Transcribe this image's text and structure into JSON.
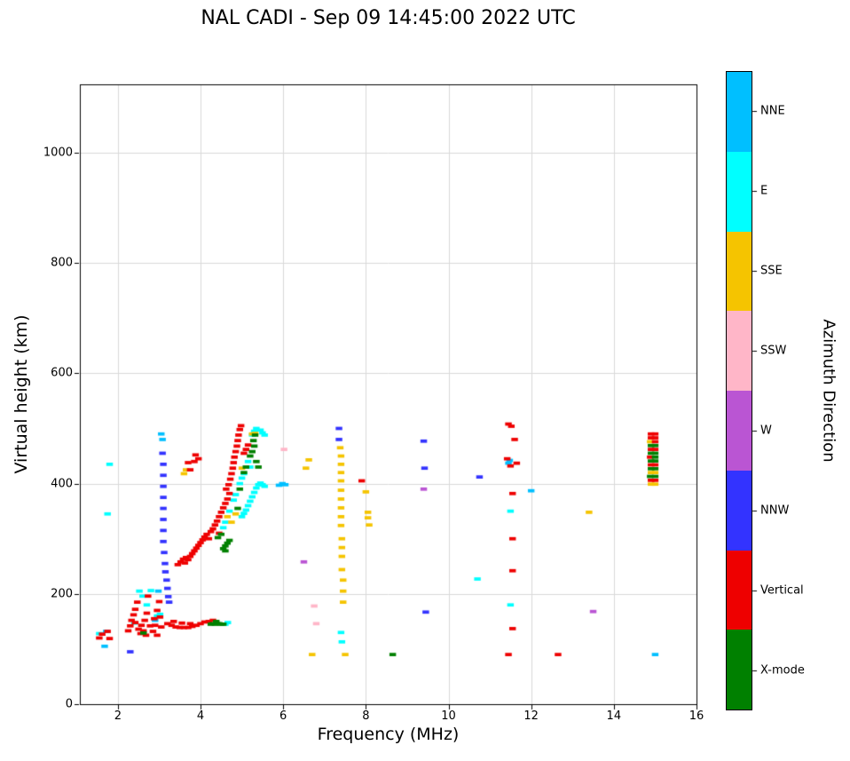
{
  "chart_data": {
    "type": "scatter",
    "title": "NAL CADI - Sep 09 14:45:00 2022 UTC",
    "xlabel": "Frequency (MHz)",
    "ylabel": "Virtual height (km)",
    "xlim": [
      1.08,
      16
    ],
    "ylim": [
      0,
      1124
    ],
    "x_ticks": [
      2,
      4,
      6,
      8,
      10,
      12,
      14,
      16
    ],
    "y_ticks": [
      0,
      200,
      400,
      600,
      800,
      1000
    ],
    "grid": true,
    "grid_color": "#d9d9d9",
    "marker": {
      "width_mhz": 0.16,
      "height_km": 6
    },
    "colorbar": {
      "label": "Azimuth Direction",
      "categories": [
        {
          "label": "NNE",
          "color": "#00BFFF"
        },
        {
          "label": "E",
          "color": "#00FFFF"
        },
        {
          "label": "SSE",
          "color": "#F5C400"
        },
        {
          "label": "SSW",
          "color": "#FFB6C8"
        },
        {
          "label": "W",
          "color": "#BA55D3"
        },
        {
          "label": "NNW",
          "color": "#3333FF"
        },
        {
          "label": "Vertical",
          "color": "#EE0000"
        },
        {
          "label": "X-mode",
          "color": "#008000"
        }
      ]
    },
    "series": [
      {
        "name": "NNE",
        "points": [
          [
            1.68,
            105
          ],
          [
            1.72,
            132
          ],
          [
            2.9,
            152
          ],
          [
            2.98,
            205
          ],
          [
            3.05,
            490
          ],
          [
            3.08,
            480
          ],
          [
            5.9,
            397
          ],
          [
            5.98,
            400
          ],
          [
            6.05,
            398
          ],
          [
            11.45,
            437
          ],
          [
            11.48,
            442
          ],
          [
            12.0,
            387
          ],
          [
            15.0,
            90
          ]
        ]
      },
      {
        "name": "E",
        "points": [
          [
            1.55,
            128
          ],
          [
            1.75,
            345
          ],
          [
            1.8,
            435
          ],
          [
            2.4,
            147
          ],
          [
            2.52,
            205
          ],
          [
            2.6,
            196
          ],
          [
            2.7,
            180
          ],
          [
            2.8,
            206
          ],
          [
            2.95,
            160
          ],
          [
            3.02,
            163
          ],
          [
            4.6,
            145
          ],
          [
            4.66,
            148
          ],
          [
            4.55,
            320
          ],
          [
            4.6,
            330
          ],
          [
            4.7,
            350
          ],
          [
            4.8,
            370
          ],
          [
            4.85,
            380
          ],
          [
            5.0,
            340
          ],
          [
            5.05,
            346
          ],
          [
            5.1,
            352
          ],
          [
            5.15,
            360
          ],
          [
            5.2,
            368
          ],
          [
            5.25,
            376
          ],
          [
            5.3,
            384
          ],
          [
            5.35,
            392
          ],
          [
            5.4,
            398
          ],
          [
            5.45,
            401
          ],
          [
            5.5,
            398
          ],
          [
            4.95,
            400
          ],
          [
            5.0,
            410
          ],
          [
            5.05,
            418
          ],
          [
            5.15,
            440
          ],
          [
            5.2,
            430
          ],
          [
            5.25,
            488
          ],
          [
            5.3,
            495
          ],
          [
            5.35,
            500
          ],
          [
            5.45,
            497
          ],
          [
            5.5,
            492
          ],
          [
            5.55,
            488
          ],
          [
            5.55,
            395
          ],
          [
            7.4,
            130
          ],
          [
            7.42,
            113
          ],
          [
            10.7,
            227
          ],
          [
            11.5,
            350
          ],
          [
            11.5,
            180
          ]
        ]
      },
      {
        "name": "SSE",
        "points": [
          [
            3.6,
            418
          ],
          [
            3.65,
            425
          ],
          [
            4.65,
            340
          ],
          [
            4.75,
            330
          ],
          [
            4.85,
            345
          ],
          [
            5.0,
            428
          ],
          [
            5.25,
            490
          ],
          [
            5.32,
            491
          ],
          [
            6.55,
            428
          ],
          [
            6.62,
            443
          ],
          [
            6.7,
            90
          ],
          [
            7.38,
            465
          ],
          [
            7.4,
            450
          ],
          [
            7.4,
            435
          ],
          [
            7.4,
            420
          ],
          [
            7.4,
            405
          ],
          [
            7.4,
            388
          ],
          [
            7.4,
            372
          ],
          [
            7.4,
            356
          ],
          [
            7.4,
            340
          ],
          [
            7.4,
            324
          ],
          [
            7.42,
            300
          ],
          [
            7.42,
            284
          ],
          [
            7.42,
            268
          ],
          [
            7.42,
            244
          ],
          [
            7.45,
            225
          ],
          [
            7.45,
            205
          ],
          [
            7.45,
            185
          ],
          [
            7.5,
            90
          ],
          [
            8.0,
            385
          ],
          [
            8.05,
            348
          ],
          [
            8.05,
            338
          ],
          [
            8.08,
            325
          ],
          [
            13.4,
            348
          ],
          [
            14.88,
            476
          ],
          [
            14.9,
            420
          ],
          [
            15.0,
            420
          ],
          [
            14.9,
            399
          ],
          [
            15.0,
            399
          ]
        ]
      },
      {
        "name": "SSW",
        "points": [
          [
            6.02,
            462
          ],
          [
            6.75,
            178
          ],
          [
            6.8,
            146
          ]
        ]
      },
      {
        "name": "W",
        "points": [
          [
            6.5,
            258
          ],
          [
            9.4,
            390
          ],
          [
            13.5,
            168
          ]
        ]
      },
      {
        "name": "NNW",
        "points": [
          [
            2.3,
            95
          ],
          [
            3.08,
            455
          ],
          [
            3.1,
            435
          ],
          [
            3.1,
            415
          ],
          [
            3.1,
            395
          ],
          [
            3.1,
            375
          ],
          [
            3.1,
            355
          ],
          [
            3.1,
            335
          ],
          [
            3.1,
            315
          ],
          [
            3.1,
            295
          ],
          [
            3.12,
            275
          ],
          [
            3.14,
            255
          ],
          [
            3.15,
            240
          ],
          [
            3.18,
            225
          ],
          [
            3.2,
            210
          ],
          [
            3.22,
            195
          ],
          [
            3.24,
            185
          ],
          [
            7.35,
            500
          ],
          [
            7.35,
            480
          ],
          [
            9.4,
            477
          ],
          [
            9.42,
            428
          ],
          [
            9.45,
            167
          ],
          [
            10.75,
            412
          ]
        ]
      },
      {
        "name": "Vertical",
        "points": [
          [
            1.55,
            120
          ],
          [
            1.62,
            127
          ],
          [
            1.75,
            132
          ],
          [
            1.8,
            119
          ],
          [
            2.25,
            133
          ],
          [
            2.3,
            142
          ],
          [
            2.33,
            152
          ],
          [
            2.38,
            162
          ],
          [
            2.42,
            172
          ],
          [
            2.42,
            148
          ],
          [
            2.47,
            185
          ],
          [
            2.5,
            136
          ],
          [
            2.55,
            128
          ],
          [
            2.57,
            143
          ],
          [
            2.62,
            133
          ],
          [
            2.65,
            152
          ],
          [
            2.68,
            125
          ],
          [
            2.7,
            165
          ],
          [
            2.73,
            196
          ],
          [
            2.78,
            142
          ],
          [
            2.85,
            132
          ],
          [
            2.88,
            155
          ],
          [
            2.9,
            143
          ],
          [
            2.95,
            170
          ],
          [
            2.95,
            125
          ],
          [
            3.0,
            186
          ],
          [
            3.02,
            158
          ],
          [
            3.05,
            140
          ],
          [
            3.2,
            146
          ],
          [
            3.3,
            143
          ],
          [
            3.35,
            150
          ],
          [
            3.4,
            140
          ],
          [
            3.5,
            139
          ],
          [
            3.55,
            147
          ],
          [
            3.6,
            139
          ],
          [
            3.7,
            139
          ],
          [
            3.75,
            146
          ],
          [
            3.8,
            141
          ],
          [
            3.9,
            143
          ],
          [
            4.0,
            146
          ],
          [
            4.1,
            149
          ],
          [
            4.2,
            150
          ],
          [
            4.3,
            152
          ],
          [
            3.7,
            438
          ],
          [
            3.75,
            425
          ],
          [
            3.85,
            440
          ],
          [
            3.88,
            452
          ],
          [
            3.95,
            445
          ],
          [
            3.45,
            253
          ],
          [
            3.52,
            258
          ],
          [
            3.58,
            263
          ],
          [
            3.62,
            256
          ],
          [
            3.65,
            266
          ],
          [
            3.7,
            262
          ],
          [
            3.75,
            268
          ],
          [
            3.8,
            273
          ],
          [
            3.85,
            278
          ],
          [
            3.9,
            283
          ],
          [
            3.95,
            288
          ],
          [
            4.0,
            293
          ],
          [
            4.05,
            298
          ],
          [
            4.1,
            303
          ],
          [
            4.15,
            308
          ],
          [
            4.2,
            300
          ],
          [
            4.25,
            313
          ],
          [
            4.3,
            318
          ],
          [
            4.35,
            325
          ],
          [
            4.4,
            332
          ],
          [
            4.45,
            340
          ],
          [
            4.45,
            310
          ],
          [
            4.5,
            348
          ],
          [
            4.55,
            356
          ],
          [
            4.6,
            364
          ],
          [
            4.65,
            372
          ],
          [
            4.7,
            382
          ],
          [
            4.62,
            390
          ],
          [
            4.68,
            398
          ],
          [
            4.72,
            408
          ],
          [
            4.75,
            418
          ],
          [
            4.78,
            428
          ],
          [
            4.8,
            438
          ],
          [
            4.82,
            448
          ],
          [
            4.85,
            458
          ],
          [
            4.88,
            468
          ],
          [
            4.9,
            478
          ],
          [
            4.92,
            488
          ],
          [
            4.95,
            498
          ],
          [
            4.98,
            505
          ],
          [
            5.05,
            455
          ],
          [
            5.1,
            462
          ],
          [
            5.15,
            470
          ],
          [
            7.9,
            405
          ],
          [
            11.45,
            508
          ],
          [
            11.52,
            504
          ],
          [
            11.42,
            445
          ],
          [
            11.5,
            432
          ],
          [
            11.6,
            480
          ],
          [
            11.65,
            437
          ],
          [
            11.55,
            382
          ],
          [
            11.55,
            300
          ],
          [
            11.55,
            242
          ],
          [
            11.55,
            137
          ],
          [
            11.45,
            90
          ],
          [
            12.65,
            90
          ],
          [
            14.9,
            490
          ],
          [
            15.0,
            490
          ],
          [
            14.9,
            483
          ],
          [
            15.0,
            483
          ],
          [
            15.0,
            476
          ],
          [
            14.9,
            462
          ],
          [
            15.0,
            462
          ],
          [
            14.88,
            448
          ],
          [
            14.9,
            434
          ],
          [
            15.0,
            434
          ],
          [
            14.9,
            406
          ],
          [
            15.0,
            406
          ]
        ]
      },
      {
        "name": "X-mode",
        "points": [
          [
            2.62,
            129
          ],
          [
            4.25,
            145
          ],
          [
            4.3,
            146
          ],
          [
            4.35,
            145
          ],
          [
            4.4,
            146
          ],
          [
            4.45,
            146
          ],
          [
            4.5,
            145
          ],
          [
            4.55,
            145
          ],
          [
            4.38,
            150
          ],
          [
            4.55,
            282
          ],
          [
            4.6,
            287
          ],
          [
            4.6,
            278
          ],
          [
            4.65,
            292
          ],
          [
            4.7,
            297
          ],
          [
            4.42,
            302
          ],
          [
            4.5,
            308
          ],
          [
            4.9,
            355
          ],
          [
            4.95,
            390
          ],
          [
            5.05,
            420
          ],
          [
            5.1,
            430
          ],
          [
            5.2,
            450
          ],
          [
            5.25,
            458
          ],
          [
            5.3,
            468
          ],
          [
            5.28,
            478
          ],
          [
            5.32,
            488
          ],
          [
            5.35,
            440
          ],
          [
            5.4,
            430
          ],
          [
            8.65,
            90
          ],
          [
            14.9,
            469
          ],
          [
            15.0,
            469
          ],
          [
            14.9,
            455
          ],
          [
            15.0,
            455
          ],
          [
            15.0,
            448
          ],
          [
            14.9,
            441
          ],
          [
            15.0,
            441
          ],
          [
            14.9,
            427
          ],
          [
            15.0,
            427
          ],
          [
            14.88,
            413
          ],
          [
            15.0,
            413
          ]
        ]
      }
    ]
  }
}
